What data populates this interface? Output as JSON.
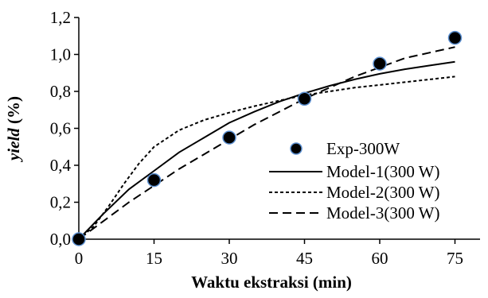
{
  "chart_data": {
    "type": "scatter",
    "xlabel": "Waktu ekstraksi (min)",
    "ylabel_italic": "yield",
    "ylabel_rest": " (%)",
    "xlim": [
      0,
      80
    ],
    "ylim": [
      0,
      1.2
    ],
    "x_ticks": [
      0,
      15,
      30,
      45,
      60,
      75
    ],
    "x_tick_labels": [
      "0",
      "15",
      "30",
      "45",
      "60",
      "75"
    ],
    "y_ticks": [
      0,
      0.2,
      0.4,
      0.6,
      0.8,
      1.0,
      1.2
    ],
    "y_tick_labels": [
      "0,0",
      "0,2",
      "0,4",
      "0,6",
      "0,8",
      "1,0",
      "1,2"
    ],
    "grid": false,
    "legend_position": "bottom-right",
    "series": [
      {
        "name": "Exp-300W",
        "kind": "markers",
        "color": "#000000",
        "edge_color": "#5b8fd0",
        "x": [
          0,
          15,
          30,
          45,
          60,
          75
        ],
        "y": [
          0.0,
          0.32,
          0.55,
          0.76,
          0.95,
          1.09
        ]
      },
      {
        "name": "Model-1(300 W)",
        "kind": "line",
        "dash": "solid",
        "color": "#000000",
        "x": [
          0,
          5,
          10,
          15,
          20,
          25,
          30,
          35,
          40,
          45,
          50,
          55,
          60,
          65,
          70,
          75
        ],
        "y": [
          0.0,
          0.14,
          0.27,
          0.37,
          0.47,
          0.55,
          0.63,
          0.69,
          0.745,
          0.79,
          0.83,
          0.865,
          0.895,
          0.92,
          0.94,
          0.96
        ]
      },
      {
        "name": "Model-2(300 W)",
        "kind": "line",
        "dash": "short",
        "color": "#000000",
        "x": [
          0,
          3,
          6,
          9,
          12,
          15,
          20,
          25,
          30,
          35,
          40,
          45,
          50,
          55,
          60,
          65,
          70,
          75
        ],
        "y": [
          0.0,
          0.07,
          0.18,
          0.3,
          0.41,
          0.5,
          0.59,
          0.645,
          0.685,
          0.72,
          0.75,
          0.78,
          0.8,
          0.82,
          0.835,
          0.85,
          0.865,
          0.88
        ]
      },
      {
        "name": "Model-3(300 W)",
        "kind": "line",
        "dash": "long",
        "color": "#000000",
        "x": [
          0,
          5,
          10,
          15,
          20,
          25,
          30,
          35,
          40,
          45,
          50,
          55,
          60,
          65,
          70,
          75
        ],
        "y": [
          0.0,
          0.1,
          0.2,
          0.29,
          0.38,
          0.46,
          0.54,
          0.62,
          0.69,
          0.76,
          0.82,
          0.88,
          0.93,
          0.98,
          1.01,
          1.04
        ]
      }
    ]
  }
}
